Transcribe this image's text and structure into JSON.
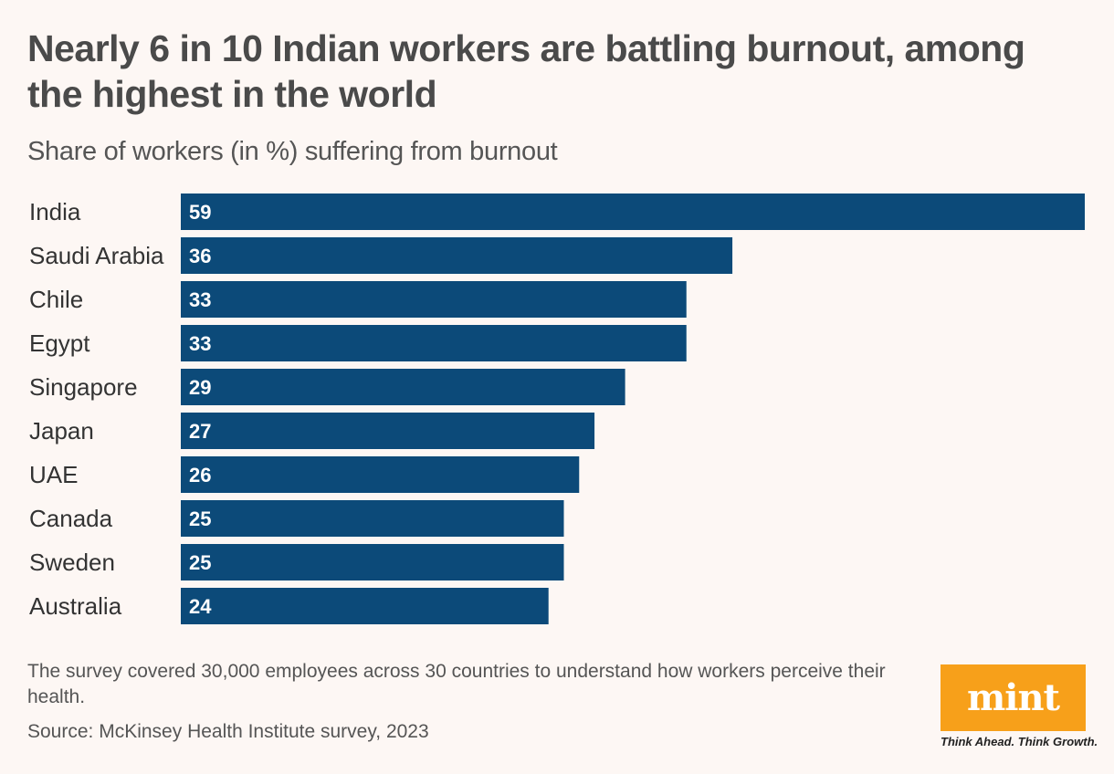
{
  "title": "Nearly 6 in 10 Indian workers are battling burnout, among the highest in the world",
  "subtitle": "Share of workers (in %) suffering from burnout",
  "note": "The survey covered 30,000 employees across 30 countries to understand how workers perceive their health.",
  "source": "Source: McKinsey Health Institute survey, 2023",
  "logo": {
    "word": "mint",
    "tagline": "Think Ahead. Think Growth.",
    "color": "#f7a01a"
  },
  "colors": {
    "bar": "#0c4a79",
    "background": "#fdf7f4"
  },
  "chart_data": {
    "type": "bar",
    "orientation": "horizontal",
    "categories": [
      "India",
      "Saudi Arabia",
      "Chile",
      "Egypt",
      "Singapore",
      "Japan",
      "UAE",
      "Canada",
      "Sweden",
      "Australia"
    ],
    "values": [
      59,
      36,
      33,
      33,
      29,
      27,
      26,
      25,
      25,
      24
    ],
    "xlim": [
      0,
      59
    ],
    "title": "Nearly 6 in 10 Indian workers are battling burnout, among the highest in the world",
    "subtitle": "Share of workers (in %) suffering from burnout",
    "xlabel": "",
    "ylabel": "",
    "grid": false,
    "legend": "none",
    "data_labels": "inside-left"
  }
}
